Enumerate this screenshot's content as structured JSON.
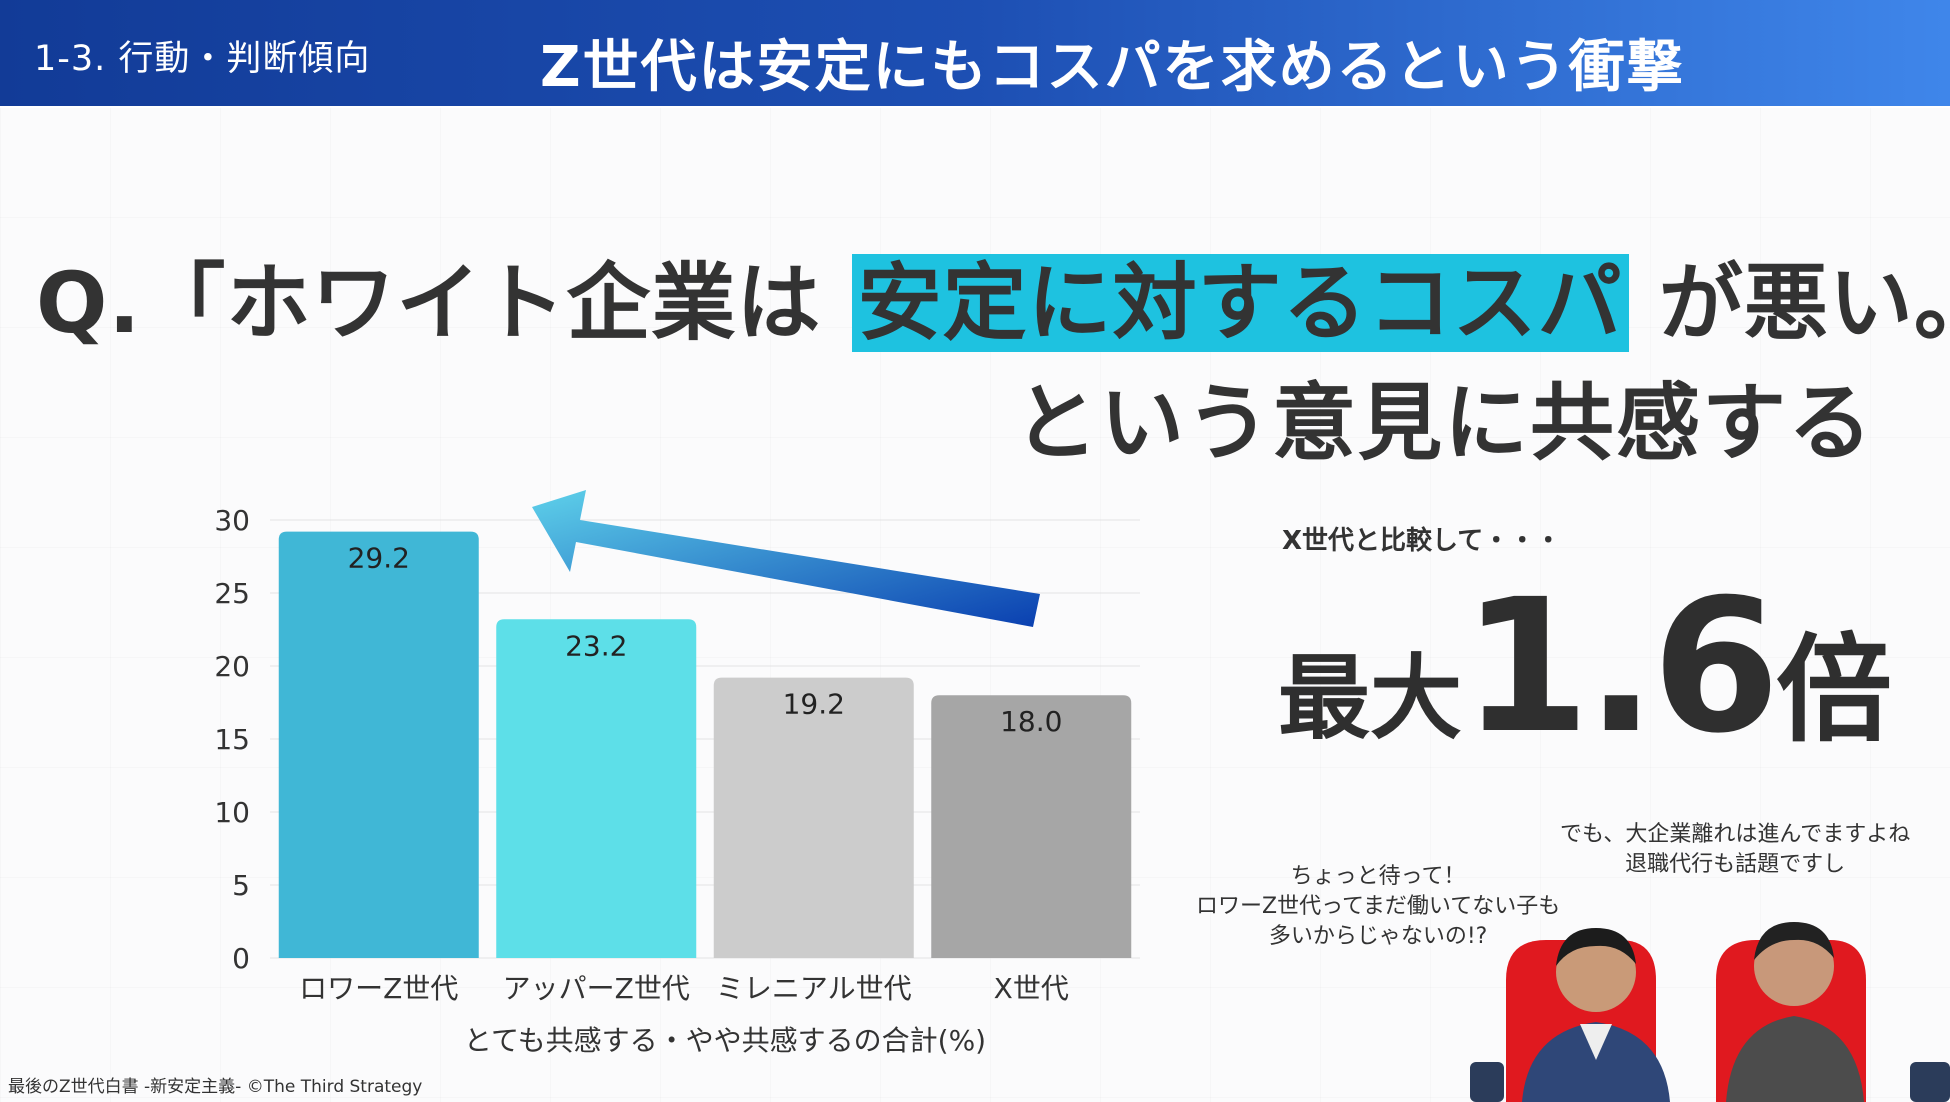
{
  "header": {
    "section": "1-3. 行動・判断傾向",
    "title": "Z世代は安定にもコスパを求めるという衝撃"
  },
  "question": {
    "prefix": "Q.「ホワイト企業は",
    "highlight": "安定に対するコスパ",
    "suffix": "が悪い。」",
    "line2": "という意見に共感する"
  },
  "chart_data": {
    "type": "bar",
    "categories": [
      "ロワーZ世代",
      "アッパーZ世代",
      "ミレニアル世代",
      "X世代"
    ],
    "values": [
      29.2,
      23.2,
      19.2,
      18.0
    ],
    "data_labels": [
      "29.2",
      "23.2",
      "19.2",
      "18.0"
    ],
    "colors": [
      "#40b7d6",
      "#5ddfe8",
      "#cccccc",
      "#a6a6a6"
    ],
    "ylim": [
      0,
      30
    ],
    "yticks": [
      0,
      5,
      10,
      15,
      20,
      25,
      30
    ],
    "ytick_labels": [
      "0",
      "5",
      "10",
      "15",
      "20",
      "25",
      "30"
    ],
    "grid": true,
    "xlabel": "とても共感する・やや共感するの合計(%)",
    "annotation": "arrow from X世代 toward ロワーZ世代"
  },
  "highlight_box": {
    "compare_label": "X世代と比較して・・・",
    "prefix": "最大",
    "number": "1.6",
    "suffix": "倍"
  },
  "quotes": {
    "left": [
      "ちょっと待って！",
      "ロワーZ世代ってまだ働いてない子も",
      "多いからじゃないの!?"
    ],
    "right": [
      "でも、大企業離れは進んでますよね",
      "退職代行も話題ですし"
    ]
  },
  "footer": {
    "text": "最後のZ世代白書 -新安定主義- ©The Third Strategy"
  }
}
